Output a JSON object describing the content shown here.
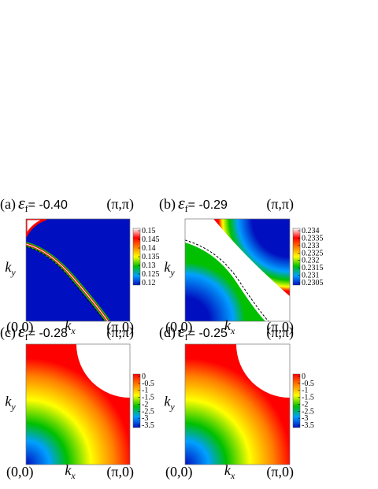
{
  "chart_data": [
    {
      "type": "heatmap",
      "panel": "(a)",
      "symbol": "ε",
      "subscript": "f",
      "value_text": "= -0.40",
      "top_right_label": "(π,π)",
      "origin_label": "(0,0)",
      "x_end_label": "(π,0)",
      "xlabel": "k",
      "xlabel_sub": "x",
      "ylabel": "k",
      "ylabel_sub": "y",
      "clim": [
        0.12,
        0.15
      ],
      "cticks": [
        0.15,
        0.145,
        0.14,
        0.135,
        0.13,
        0.125,
        0.12
      ],
      "colormap": [
        "#0010c0",
        "#00a0ff",
        "#00c000",
        "#ffff00",
        "#ff8000",
        "#ff0000",
        "#ffffff"
      ]
    },
    {
      "type": "heatmap",
      "panel": "(b)",
      "symbol": "ε",
      "subscript": "f",
      "value_text": "= -0.29",
      "top_right_label": "(π,π)",
      "origin_label": "(0,0)",
      "x_end_label": "(π,0)",
      "xlabel": "k",
      "xlabel_sub": "x",
      "ylabel": "k",
      "ylabel_sub": "y",
      "clim": [
        0.2305,
        0.234
      ],
      "cticks": [
        0.234,
        0.2335,
        0.233,
        0.2325,
        0.232,
        0.2315,
        0.231,
        0.2305
      ],
      "colormap": [
        "#0010c0",
        "#00a0ff",
        "#00c000",
        "#ffff00",
        "#ff8000",
        "#ff0000",
        "#ffffff"
      ]
    },
    {
      "type": "heatmap",
      "panel": "(c)",
      "symbol": "ε",
      "subscript": "f",
      "value_text": "= -0.28",
      "top_right_label": "(π,π)",
      "origin_label": "(0,0)",
      "x_end_label": "(π,0)",
      "xlabel": "k",
      "xlabel_sub": "x",
      "ylabel": "k",
      "ylabel_sub": "y",
      "clim": [
        -3.5,
        0
      ],
      "cticks": [
        0,
        -0.5,
        -1,
        -1.5,
        -2,
        -2.5,
        -3,
        -3.5
      ],
      "colormap": [
        "#0010c0",
        "#00a0ff",
        "#00c000",
        "#ffff00",
        "#ff8000",
        "#ff0000"
      ]
    },
    {
      "type": "heatmap",
      "panel": "(d)",
      "symbol": "ε",
      "subscript": "f",
      "value_text": "= -0.25",
      "top_right_label": "(π,π)",
      "origin_label": "(0,0)",
      "x_end_label": "(π,0)",
      "xlabel": "k",
      "xlabel_sub": "x",
      "ylabel": "k",
      "ylabel_sub": "y",
      "clim": [
        -3.5,
        0
      ],
      "cticks": [
        0,
        -0.5,
        -1,
        -1.5,
        -2,
        -2.5,
        -3,
        -3.5
      ],
      "colormap": [
        "#0010c0",
        "#00a0ff",
        "#00c000",
        "#ffff00",
        "#ff8000",
        "#ff0000"
      ]
    }
  ]
}
